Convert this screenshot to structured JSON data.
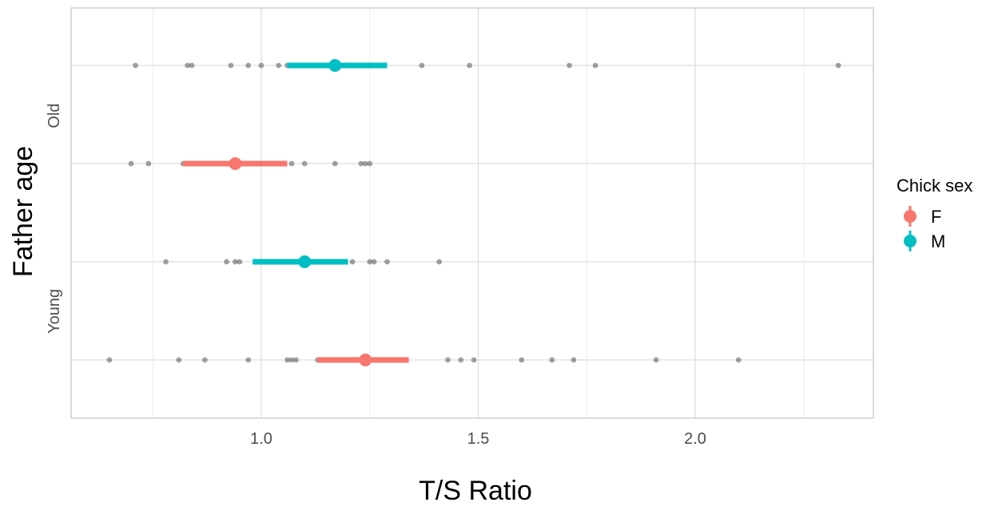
{
  "chart_data": {
    "type": "scatter",
    "xlabel": "T/S Ratio",
    "ylabel": "Father age",
    "xlim": [
      0.6,
      2.4
    ],
    "x_ticks": [
      1.0,
      1.5,
      2.0
    ],
    "x_tick_labels": [
      "1.0",
      "1.5",
      "2.0"
    ],
    "y_groups": [
      "Young",
      "Old"
    ],
    "grid": true,
    "legend": {
      "title": "Chick sex",
      "placement": "right",
      "entries": [
        {
          "label": "F",
          "color": "#F8766D"
        },
        {
          "label": "M",
          "color": "#00BFC4"
        }
      ]
    },
    "series": [
      {
        "father_age": "Old",
        "sex": "M",
        "color": "#00BFC4",
        "mean": 1.17,
        "ci": [
          1.06,
          1.29
        ],
        "points": [
          0.71,
          0.83,
          0.84,
          0.93,
          0.97,
          1.0,
          1.04,
          1.06,
          1.1,
          1.12,
          1.14,
          1.17,
          1.19,
          1.21,
          1.23,
          1.37,
          1.48,
          1.71,
          1.77,
          2.33
        ]
      },
      {
        "father_age": "Old",
        "sex": "F",
        "color": "#F8766D",
        "mean": 0.94,
        "ci": [
          0.82,
          1.06
        ],
        "points": [
          0.7,
          0.74,
          0.82,
          0.86,
          0.87,
          0.88,
          0.89,
          0.9,
          0.92,
          0.95,
          0.98,
          0.99,
          1.01,
          1.02,
          1.03,
          1.04,
          1.05,
          1.07,
          1.1,
          1.17,
          1.23,
          1.24,
          1.25
        ]
      },
      {
        "father_age": "Young",
        "sex": "M",
        "color": "#00BFC4",
        "mean": 1.1,
        "ci": [
          0.98,
          1.2
        ],
        "points": [
          0.78,
          0.92,
          0.94,
          0.95,
          0.99,
          1.02,
          1.04,
          1.05,
          1.07,
          1.09,
          1.1,
          1.12,
          1.14,
          1.16,
          1.21,
          1.25,
          1.26,
          1.29,
          1.41
        ]
      },
      {
        "father_age": "Young",
        "sex": "F",
        "color": "#F8766D",
        "mean": 1.24,
        "ci": [
          1.13,
          1.34
        ],
        "points": [
          0.65,
          0.81,
          0.87,
          0.97,
          1.06,
          1.07,
          1.08,
          1.13,
          1.14,
          1.19,
          1.22,
          1.24,
          1.26,
          1.29,
          1.33,
          1.43,
          1.46,
          1.49,
          1.6,
          1.67,
          1.72,
          1.91,
          2.1
        ]
      }
    ]
  }
}
